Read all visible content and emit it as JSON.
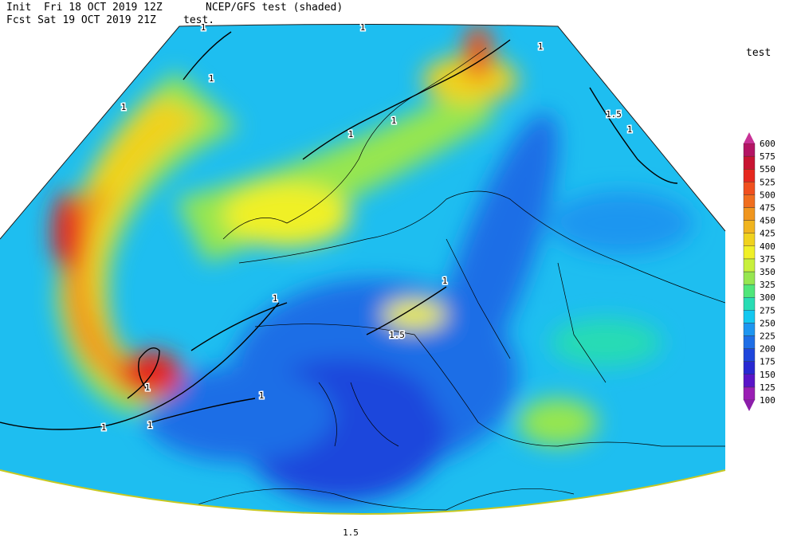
{
  "header": {
    "init": "Init  Fri 18 OCT 2019 12Z",
    "fcst": "Fcst Sat 19 OCT 2019 21Z",
    "title": "NCEP/GFS test (shaded)",
    "subtitle": "test."
  },
  "legend": {
    "title": "test",
    "levels": [
      100,
      125,
      150,
      175,
      200,
      225,
      250,
      275,
      300,
      325,
      350,
      375,
      400,
      425,
      450,
      475,
      500,
      525,
      550,
      575,
      600
    ],
    "colors": [
      "#9a1eb4",
      "#5a14c8",
      "#2828d2",
      "#1e46dc",
      "#1e6ee6",
      "#1e96f0",
      "#14c8f0",
      "#28dcb4",
      "#50e67a",
      "#96e650",
      "#c8f03c",
      "#f0f028",
      "#f0d21e",
      "#f0b41e",
      "#f0961e",
      "#f06e1e",
      "#f0501e",
      "#e6281e",
      "#c81432",
      "#b41464"
    ],
    "under_color": "#8c1eaa",
    "over_color": "#c83296"
  },
  "contour_labels": [
    "1",
    "1",
    "1",
    "1",
    "1",
    "1.5",
    "1",
    "1",
    "1",
    "1",
    "1.5",
    "1",
    "1",
    "1",
    "1",
    "1",
    "1.5"
  ]
}
